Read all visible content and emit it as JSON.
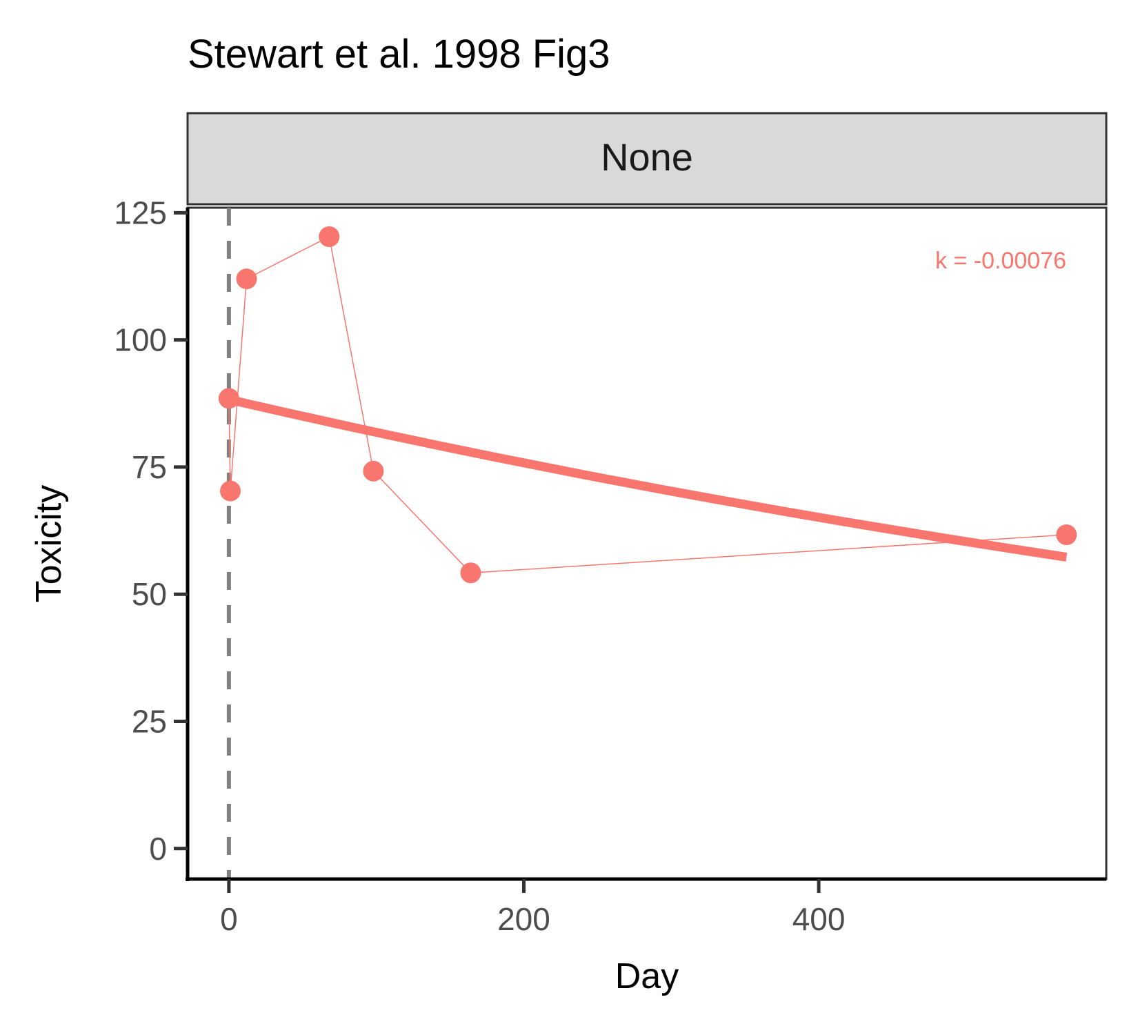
{
  "chart_data": {
    "type": "line",
    "title": "Stewart et al. 1998 Fig3",
    "facet": "None",
    "xlabel": "Day",
    "ylabel": "Toxicity",
    "xlim": [
      -28,
      595
    ],
    "ylim": [
      -6,
      126
    ],
    "x_ticks": [
      0,
      200,
      400
    ],
    "y_ticks": [
      0,
      25,
      50,
      75,
      100,
      125
    ],
    "series": [
      {
        "color": "#F8766D",
        "x": [
          0,
          1,
          12,
          68,
          98,
          164,
          568
        ],
        "y": [
          88.5,
          70.3,
          112,
          120.3,
          74.2,
          54.2,
          61.7
        ]
      }
    ],
    "fit": {
      "color": "#F8766D",
      "k": -0.00076,
      "x": [
        0,
        568
      ],
      "y": [
        88.3,
        57.3
      ]
    },
    "reference_line": {
      "x": 0,
      "color": "#808080",
      "style": "dashed"
    },
    "annotation": {
      "text": "k = -0.00076",
      "color": "#F8766D",
      "position": "top-right"
    },
    "grid": false,
    "legend": "none",
    "strip_fill": "#D9D9D9"
  }
}
